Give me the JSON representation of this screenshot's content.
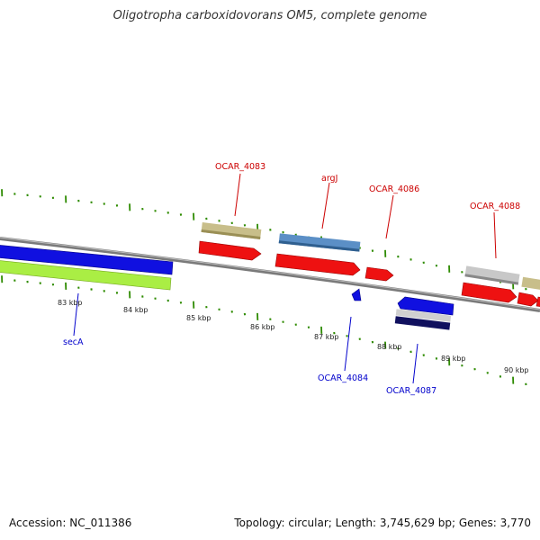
{
  "title": "Oligotropha carboxidovorans OM5, complete genome",
  "footer": {
    "accession": "Accession: NC_011386",
    "summary": "Topology: circular; Length: 3,745,629 bp; Genes: 3,770"
  },
  "colors": {
    "backbone": "#888888",
    "tick": "#2e8b00",
    "label_forward": "#cc0000",
    "label_reverse": "#0000cc"
  },
  "tick_labels": [
    "83 kbp",
    "84 kbp",
    "85 kbp",
    "86 kbp",
    "87 kbp",
    "88 kbp",
    "89 kbp",
    "90 kbp"
  ],
  "genes_forward": [
    "OCAR_4083",
    "argJ",
    "OCAR_4086",
    "OCAR_4088"
  ],
  "genes_reverse": [
    "secA",
    "OCAR_4084",
    "OCAR_4087"
  ]
}
